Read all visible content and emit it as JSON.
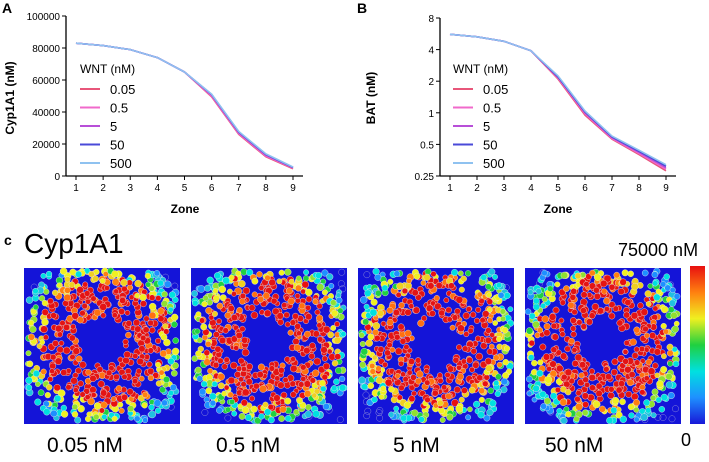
{
  "panels": {
    "a": "A",
    "b": "B",
    "c": "c"
  },
  "chart_data": [
    {
      "type": "line",
      "panel": "A",
      "xlabel": "Zone",
      "ylabel": "Cyp1A1 (nM)",
      "categories": [
        1,
        2,
        3,
        4,
        5,
        6,
        7,
        8,
        9
      ],
      "ylim": [
        0,
        100000
      ],
      "yticks": [
        "0",
        "20000",
        "40000",
        "60000",
        "80000",
        "100000"
      ],
      "legend_title": "WNT (nM)",
      "legend_position": "center-left",
      "series": [
        {
          "name": "0.05",
          "color": "#e8567a",
          "values": [
            83000,
            81500,
            79000,
            74000,
            65000,
            49500,
            26000,
            12000,
            4500
          ]
        },
        {
          "name": "0.5",
          "color": "#f06acb",
          "values": [
            83000,
            81500,
            79000,
            74000,
            65000,
            50000,
            26500,
            12500,
            5000
          ]
        },
        {
          "name": "5",
          "color": "#b84fd8",
          "values": [
            83000,
            81500,
            79000,
            74000,
            65000,
            50500,
            27000,
            13000,
            5200
          ]
        },
        {
          "name": "50",
          "color": "#4a4ad8",
          "values": [
            83000,
            81500,
            79000,
            74000,
            65000,
            51000,
            27500,
            13500,
            5400
          ]
        },
        {
          "name": "500",
          "color": "#8fc2f0",
          "values": [
            83000,
            81500,
            79000,
            74000,
            65000,
            51200,
            27800,
            13800,
            5600
          ]
        }
      ]
    },
    {
      "type": "line",
      "panel": "B",
      "xlabel": "Zone",
      "ylabel": "BAT (nM)",
      "categories": [
        1,
        2,
        3,
        4,
        5,
        6,
        7,
        8,
        9
      ],
      "yscale": "log2",
      "ylim": [
        0.25,
        8
      ],
      "yticks": [
        "0.25",
        "0.5",
        "1",
        "2",
        "4",
        "8"
      ],
      "legend_title": "WNT (nM)",
      "legend_position": "center-left",
      "series": [
        {
          "name": "0.05",
          "color": "#e8567a",
          "values": [
            5.6,
            5.3,
            4.8,
            3.9,
            2.1,
            0.95,
            0.56,
            0.4,
            0.28
          ]
        },
        {
          "name": "0.5",
          "color": "#f06acb",
          "values": [
            5.6,
            5.3,
            4.8,
            3.9,
            2.15,
            0.98,
            0.57,
            0.41,
            0.29
          ]
        },
        {
          "name": "5",
          "color": "#b84fd8",
          "values": [
            5.6,
            5.3,
            4.8,
            3.9,
            2.2,
            1.0,
            0.58,
            0.42,
            0.3
          ]
        },
        {
          "name": "50",
          "color": "#4a4ad8",
          "values": [
            5.6,
            5.3,
            4.8,
            3.9,
            2.2,
            1.02,
            0.59,
            0.43,
            0.31
          ]
        },
        {
          "name": "500",
          "color": "#8fc2f0",
          "values": [
            5.6,
            5.3,
            4.8,
            3.9,
            2.25,
            1.04,
            0.6,
            0.44,
            0.32
          ]
        }
      ]
    }
  ],
  "heatmaps": {
    "title": "Cyp1A1",
    "colorbar_max": "75000 nM",
    "colorbar_min": "0",
    "colorbar_colors": [
      "#1818d8",
      "#1e90ff",
      "#00e0e0",
      "#20d040",
      "#f0f020",
      "#ff8010",
      "#e81010"
    ],
    "panels": [
      {
        "caption": "0.05 nM"
      },
      {
        "caption": "0.5 nM"
      },
      {
        "caption": "5 nM"
      },
      {
        "caption": "50 nM"
      }
    ]
  }
}
